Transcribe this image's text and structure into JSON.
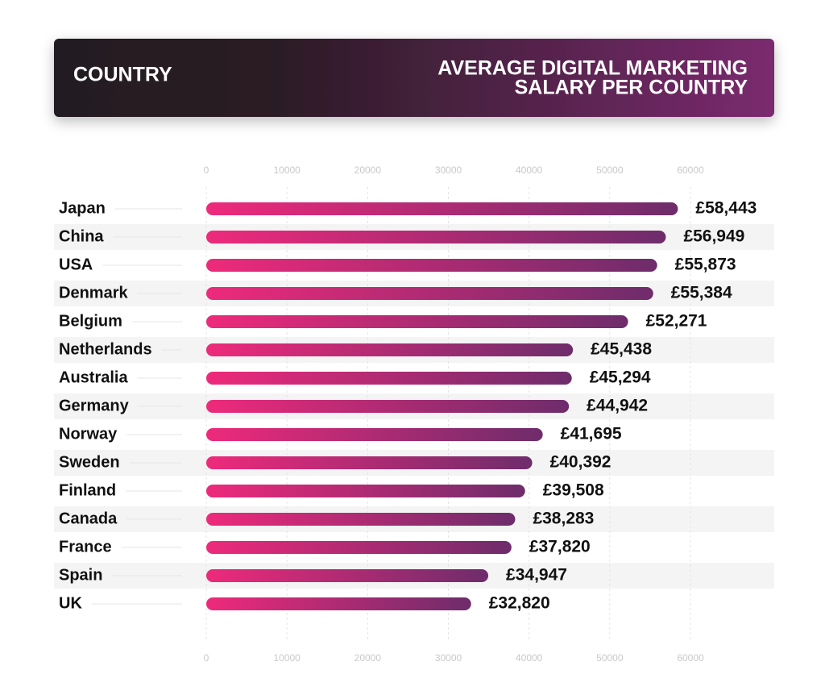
{
  "chart_data": {
    "type": "hbar",
    "category_header": "COUNTRY",
    "title_lines": [
      "AVERAGE DIGITAL MARKETING",
      "SALARY PER COUNTRY"
    ],
    "categories": [
      "Japan",
      "China",
      "USA",
      "Denmark",
      "Belgium",
      "Netherlands",
      "Australia",
      "Germany",
      "Norway",
      "Sweden",
      "Finland",
      "Canada",
      "France",
      "Spain",
      "UK"
    ],
    "values": [
      58443,
      56949,
      55873,
      55384,
      52271,
      45438,
      45294,
      44942,
      41695,
      40392,
      39508,
      38283,
      37820,
      34947,
      32820
    ],
    "value_labels": [
      "£58,443",
      "£56,949",
      "£55,873",
      "£55,384",
      "£52,271",
      "£45,438",
      "£45,294",
      "£44,942",
      "£41,695",
      "£40,392",
      "£39,508",
      "£38,283",
      "£37,820",
      "£34,947",
      "£32,820"
    ],
    "colors": [
      "#ee2a7b",
      "#6e2c6b"
    ],
    "xlim": [
      0,
      60000
    ],
    "xticks": [
      0,
      10000,
      20000,
      30000,
      40000,
      50000,
      60000
    ],
    "grid": true
  }
}
